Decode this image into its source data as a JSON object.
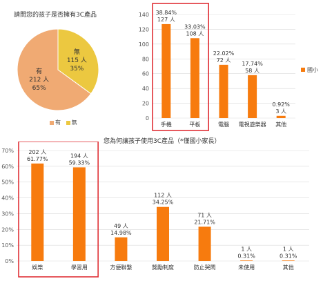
{
  "colors": {
    "pie_yes": "#F0AA73",
    "pie_no": "#ECC840",
    "bar": "#F77B0E",
    "grid": "#D9D9D9",
    "highlight": "#E03036"
  },
  "chart_data": [
    {
      "type": "pie",
      "title": "請問您的孩子是否擁有3C產品",
      "slices": [
        {
          "name": "有",
          "count": "212 人",
          "percent_label": "65%",
          "value": 65
        },
        {
          "name": "無",
          "count": "115 人",
          "percent_label": "35%",
          "value": 35
        }
      ],
      "legend": [
        "有",
        "無"
      ],
      "legend_position": "bottom"
    },
    {
      "type": "bar",
      "title": "",
      "categories": [
        "手機",
        "平板",
        "電腦",
        "電視遊樂器",
        "其他"
      ],
      "values": [
        127,
        108,
        72,
        58,
        3
      ],
      "percent_labels": [
        "38.84%",
        "33.03%",
        "22.02%",
        "17.74%",
        "0.92%"
      ],
      "count_labels": [
        "127 人",
        "108 人",
        "72 人",
        "58 人",
        "3 人"
      ],
      "ylim": [
        0,
        140
      ],
      "yticks": [
        "0",
        "20",
        "40",
        "60",
        "80",
        "100",
        "120",
        "140"
      ],
      "series": [
        {
          "name": "國小",
          "values": [
            127,
            108,
            72,
            58,
            3
          ]
        }
      ],
      "legend_position": "right",
      "grid": true,
      "highlighted_categories": [
        "手機",
        "平板"
      ]
    },
    {
      "type": "bar",
      "title": "您為何讓孩子使用3C產品（*僅國小家長）",
      "categories": [
        "娛樂",
        "學習用",
        "方便聯繫",
        "獎勵制度",
        "防止哭鬧",
        "未使用",
        "其他"
      ],
      "values": [
        61.77,
        59.33,
        14.98,
        34.25,
        21.71,
        0.31,
        0.31
      ],
      "count_labels": [
        "202 人",
        "194 人",
        "49 人",
        "112 人",
        "71 人",
        "1 人",
        "1 人"
      ],
      "percent_labels": [
        "61.77%",
        "59.33%",
        "14.98%",
        "34.25%",
        "21.71%",
        "0.31%",
        "0.31%"
      ],
      "ylim": [
        0,
        70
      ],
      "yticks": [
        "0%",
        "10%",
        "20%",
        "30%",
        "40%",
        "50%",
        "60%",
        "70%"
      ],
      "grid": true,
      "highlighted_categories": [
        "娛樂",
        "學習用"
      ]
    }
  ]
}
